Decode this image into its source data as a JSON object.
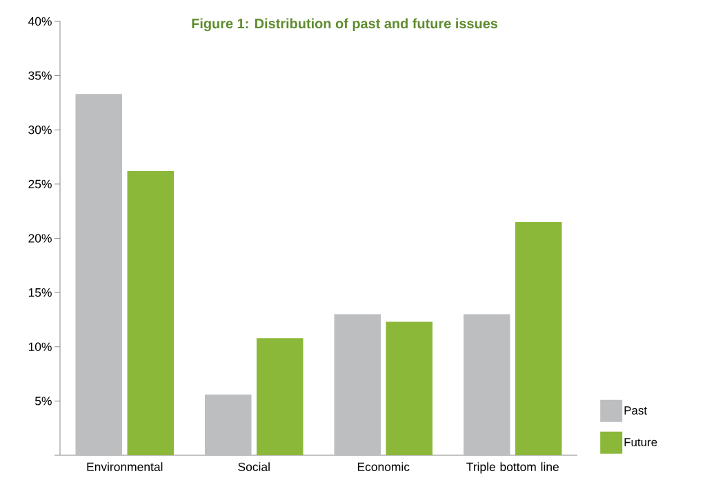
{
  "chart_data": {
    "type": "bar",
    "title": "Figure 1: Distribution of past and future issues",
    "categories": [
      "Environmental",
      "Social",
      "Economic",
      "Triple bottom line"
    ],
    "series": [
      {
        "name": "Past",
        "color": "#bdbec0",
        "values": [
          33.3,
          5.6,
          13.0,
          13.0
        ]
      },
      {
        "name": "Future",
        "color": "#8cb83a",
        "values": [
          26.2,
          10.8,
          12.3,
          21.5
        ]
      }
    ],
    "ylim": [
      0,
      40
    ],
    "yticks": [
      {
        "value": 0,
        "label": null
      },
      {
        "value": 5,
        "label": "5%"
      },
      {
        "value": 10,
        "label": "10%"
      },
      {
        "value": 15,
        "label": "15%"
      },
      {
        "value": 20,
        "label": "20%"
      },
      {
        "value": 25,
        "label": "25%"
      },
      {
        "value": 30,
        "label": "30%"
      },
      {
        "value": 35,
        "label": "35%"
      },
      {
        "value": 40,
        "label": "40%"
      }
    ],
    "legend": "right",
    "grid": false
  }
}
